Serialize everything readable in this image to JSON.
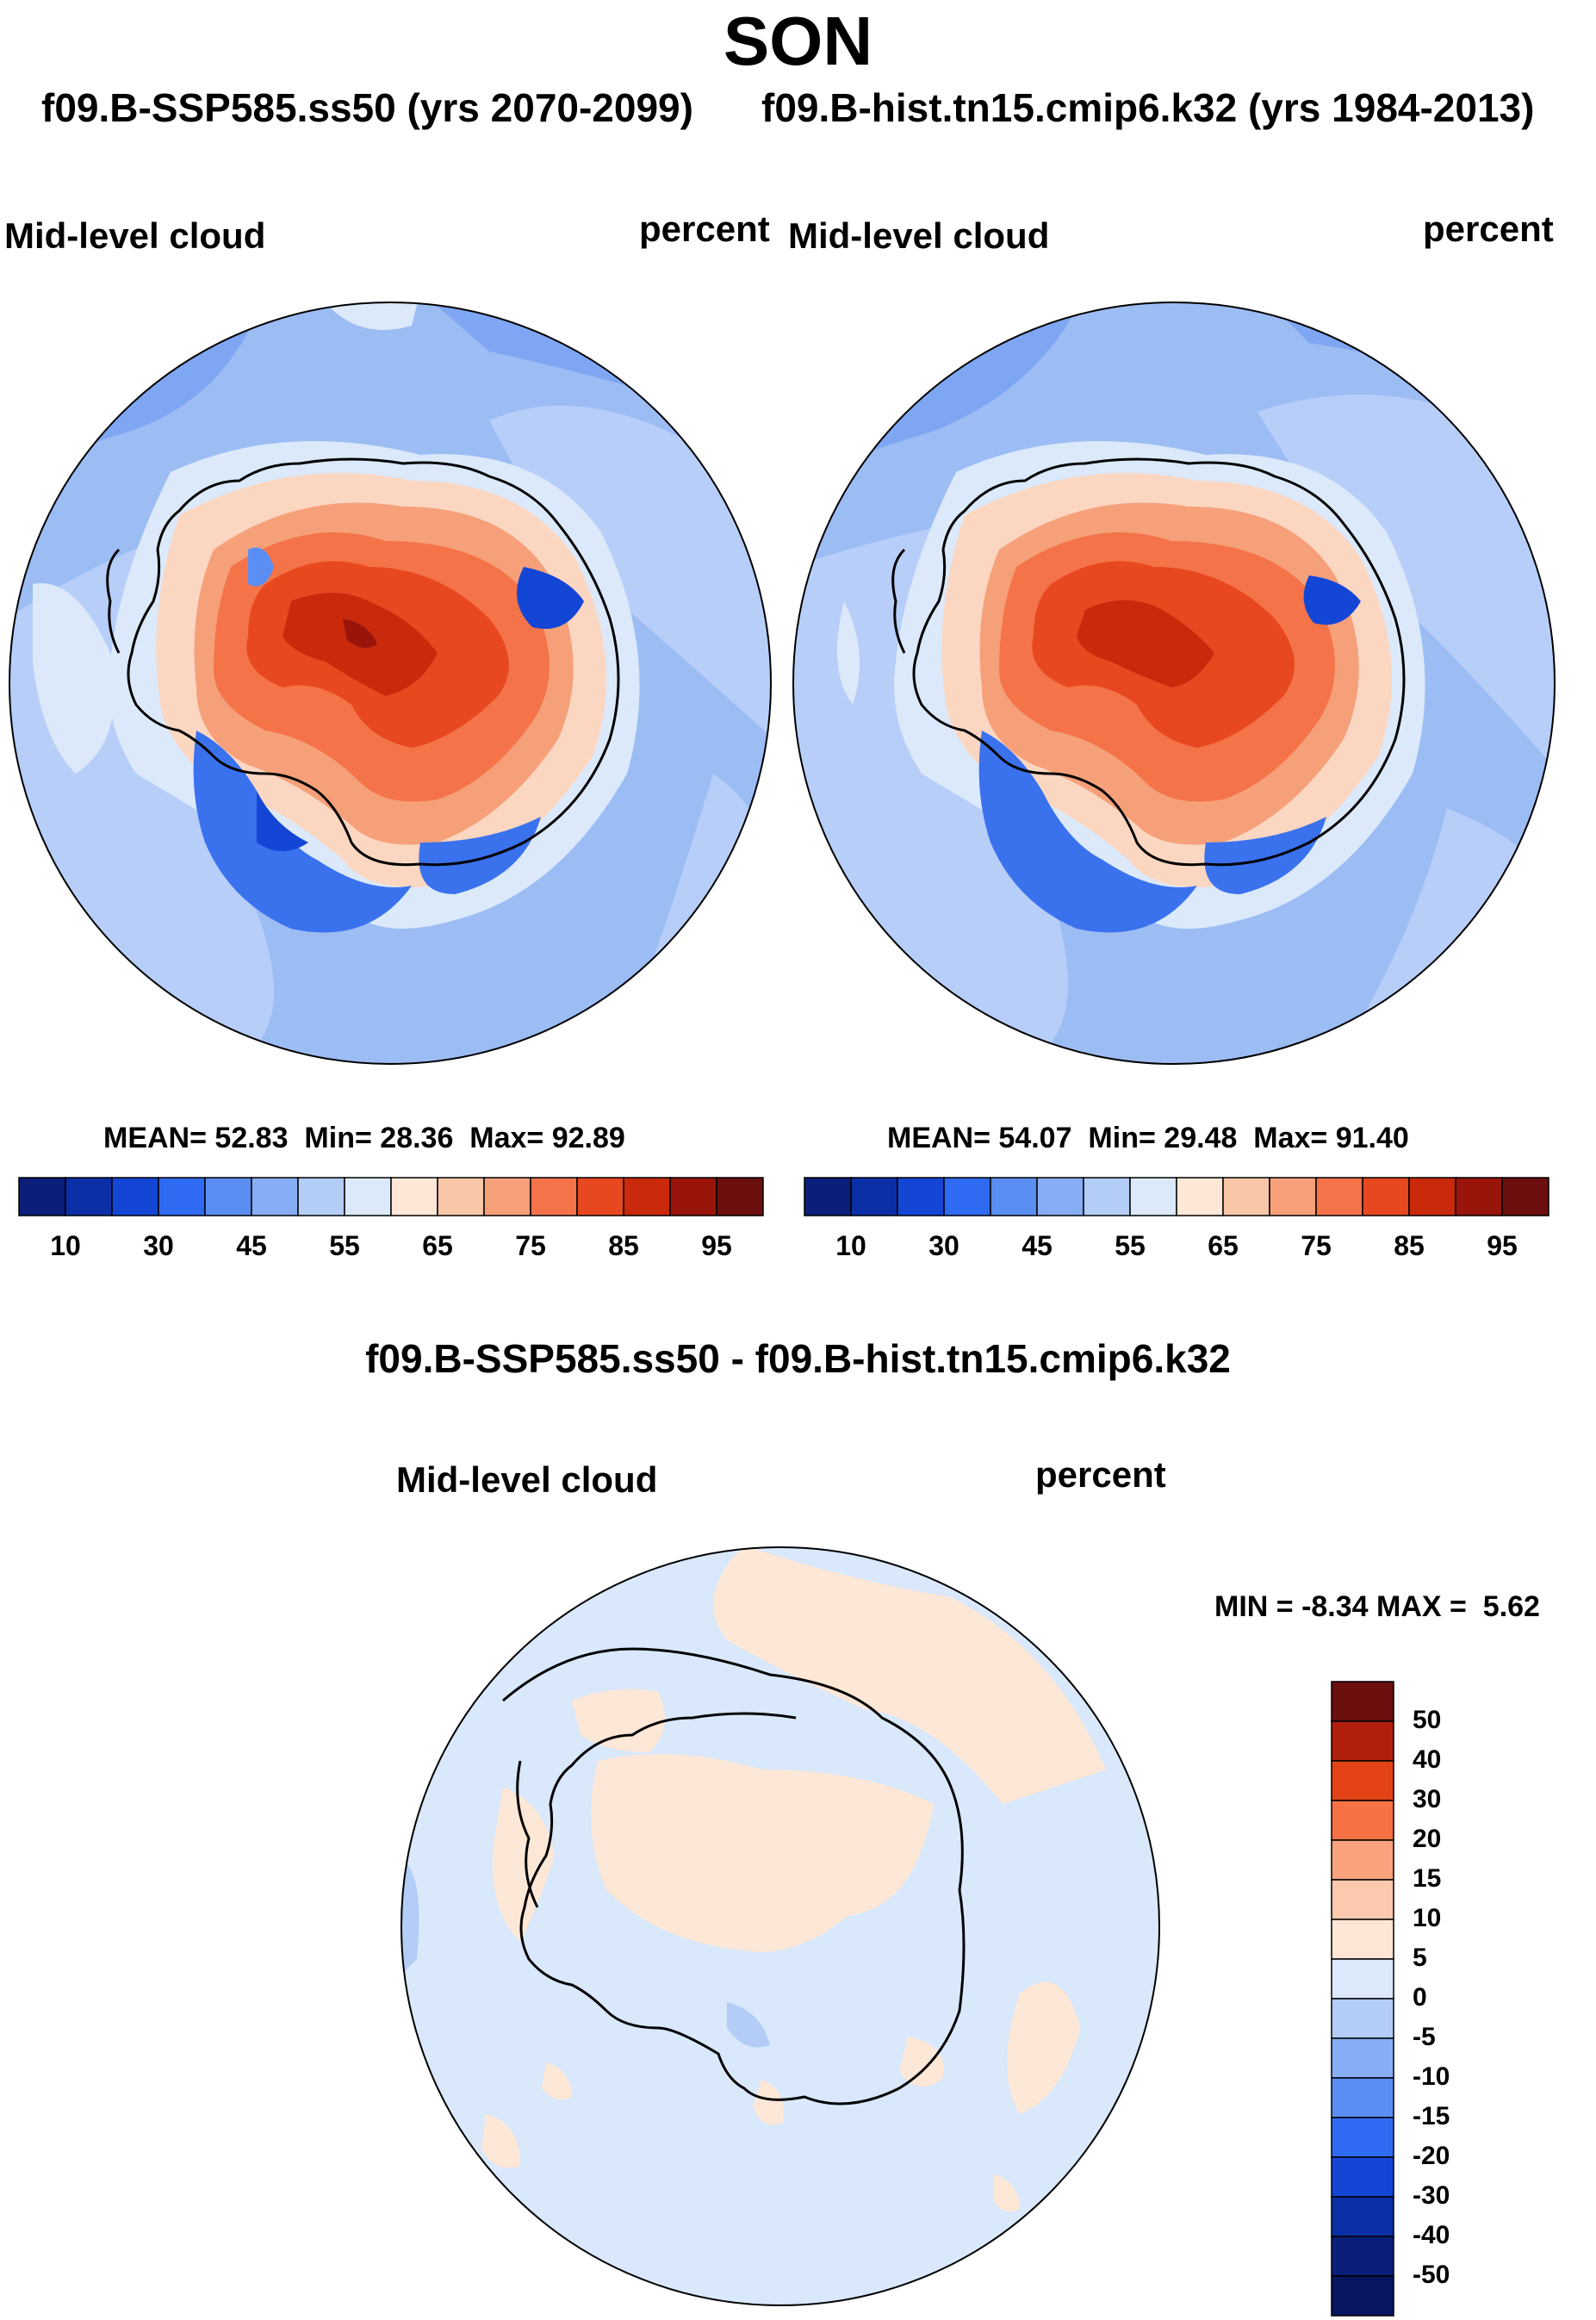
{
  "title": "SON",
  "subtitle_left": "f09.B-SSP585.ss50 (yrs 2070-2099)",
  "subtitle_right": "f09.B-hist.tn15.cmip6.k32 (yrs 1984-2013)",
  "panels": {
    "left": {
      "variable": "Mid-level cloud",
      "units": "percent",
      "stats": {
        "mean_label": "MEAN=",
        "mean": "52.83",
        "min_label": "Min=",
        "min": "28.36",
        "max_label": "Max=",
        "max": "92.89"
      }
    },
    "right": {
      "variable": "Mid-level cloud",
      "units": "percent",
      "stats": {
        "mean_label": "MEAN=",
        "mean": "54.07",
        "min_label": "Min=",
        "min": "29.48",
        "max_label": "Max=",
        "max": "91.40"
      }
    },
    "diff": {
      "title": "f09.B-SSP585.ss50 - f09.B-hist.tn15.cmip6.k32",
      "variable": "Mid-level cloud",
      "units": "percent",
      "stats": {
        "min_label": "MIN =",
        "min": "-8.34",
        "max_label": "MAX =",
        "max": "5.62"
      }
    }
  },
  "colorbar_abs": {
    "colors": [
      "#0a1e7a",
      "#0b2fa6",
      "#1446d6",
      "#2f6af2",
      "#5b8ef2",
      "#87aef4",
      "#b3cdf6",
      "#dbe9fb",
      "#fde7d6",
      "#f9c6a8",
      "#f6a07a",
      "#f47348",
      "#e84820",
      "#c92a0b",
      "#99150c",
      "#6b0e0e"
    ],
    "tick_labels": [
      "10",
      "30",
      "45",
      "55",
      "65",
      "75",
      "85",
      "95"
    ]
  },
  "colorbar_diff": {
    "colors": [
      "#6b0e0e",
      "#b0200c",
      "#e34317",
      "#f67245",
      "#f9a27d",
      "#fbc9ad",
      "#fde6d6",
      "#dbe9fb",
      "#b3cdf6",
      "#87aef4",
      "#5b8ef2",
      "#2f6af2",
      "#1446d6",
      "#0b2fa6",
      "#0a1e7a",
      "#081560"
    ],
    "tick_labels": [
      "50",
      "40",
      "30",
      "20",
      "15",
      "10",
      "5",
      "0",
      "-5",
      "-10",
      "-15",
      "-20",
      "-30",
      "-40",
      "-50"
    ]
  },
  "map_fields": {
    "ocean": "#9cbcf4",
    "ocean_alt": "#b7cef8",
    "ocean_dark": "#7ea6f2",
    "ice_light": "#dbe9fb",
    "ice_edge": "#fbd7c2",
    "interior_warm": "#f47348",
    "interior_hot": "#e84820",
    "interior_core": "#c92a0b",
    "coastal_blue": "#3a72ee",
    "diff_base": "#d9e8fb",
    "diff_pos": "#fde7d6",
    "diff_neg": "#b3cdf6"
  },
  "chart_data": [
    {
      "type": "heatmap",
      "title": "Mid-level cloud",
      "units": "percent",
      "mean": 52.83,
      "min": 28.36,
      "max": 92.89,
      "levels": [
        10,
        20,
        30,
        40,
        45,
        50,
        55,
        60,
        65,
        70,
        75,
        80,
        85,
        90,
        95
      ]
    },
    {
      "type": "heatmap",
      "title": "Mid-level cloud",
      "units": "percent",
      "mean": 54.07,
      "min": 29.48,
      "max": 91.4,
      "levels": [
        10,
        20,
        30,
        40,
        45,
        50,
        55,
        60,
        65,
        70,
        75,
        80,
        85,
        90,
        95
      ]
    },
    {
      "type": "heatmap",
      "title": "f09.B-SSP585.ss50 - f09.B-hist.tn15.cmip6.k32",
      "units": "percent",
      "min": -8.34,
      "max": 5.62,
      "levels": [
        -50,
        -40,
        -30,
        -20,
        -15,
        -10,
        -5,
        0,
        5,
        10,
        15,
        20,
        30,
        40,
        50
      ]
    }
  ]
}
